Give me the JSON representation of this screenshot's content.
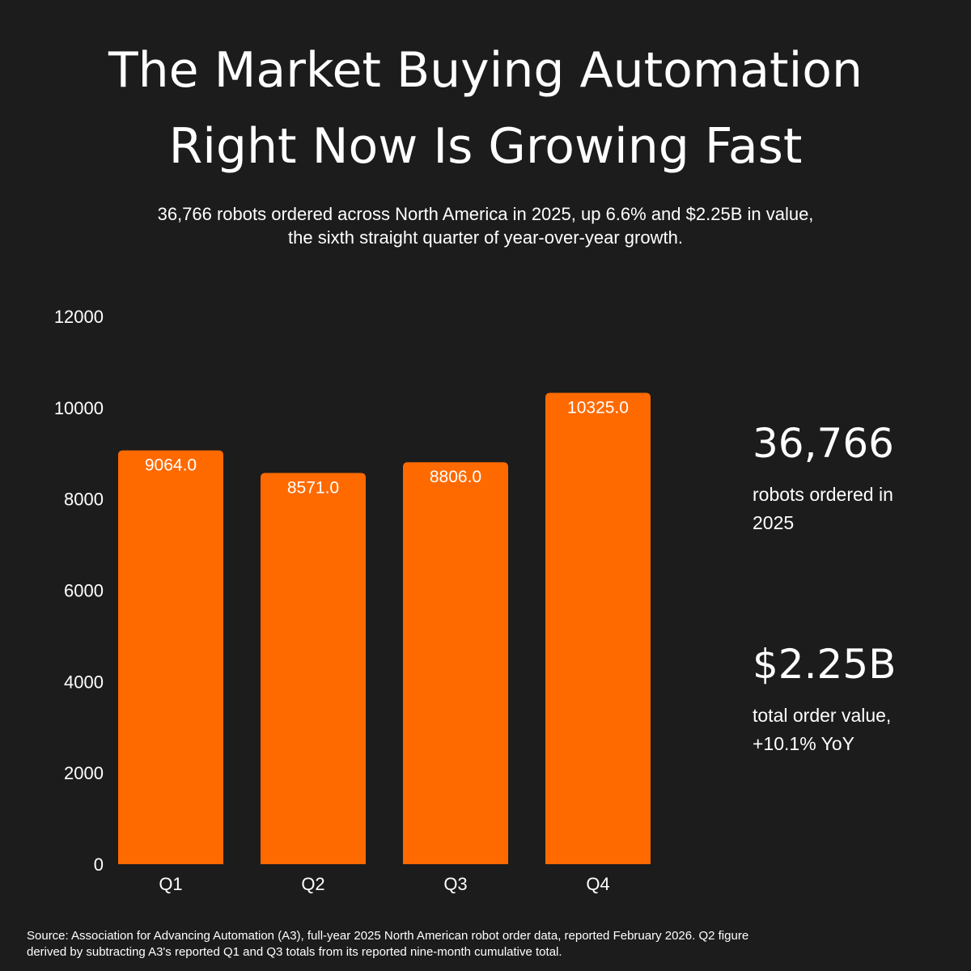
{
  "title": {
    "line1": "The Market Buying Automation",
    "line2": "Right Now Is Growing Fast"
  },
  "subtitle": {
    "line1": "36,766 robots ordered across North America in 2025, up 6.6% and $2.25B in value,",
    "line2": "the sixth straight quarter of year-over-year growth."
  },
  "chart_data": {
    "type": "bar",
    "categories": [
      "Q1",
      "Q2",
      "Q3",
      "Q4"
    ],
    "values": [
      9064.0,
      8571.0,
      8806.0,
      10325.0
    ],
    "value_labels": [
      "9064.0",
      "8571.0",
      "8806.0",
      "10325.0"
    ],
    "yticks": [
      "0",
      "2000",
      "4000",
      "6000",
      "8000",
      "10000",
      "12000"
    ],
    "ylim": [
      0,
      12000
    ],
    "grid": false,
    "legend": false,
    "bar_color": "#ff6a00"
  },
  "stats": [
    {
      "value": "36,766",
      "label_lines": [
        "robots ordered in",
        "2025"
      ]
    },
    {
      "value": "$2.25B",
      "label_lines": [
        "total order value,",
        "+10.1% YoY"
      ]
    }
  ],
  "source": {
    "line1": "Source: Association for Advancing Automation (A3), full-year 2025 North American robot order data, reported February 2026. Q2 figure",
    "line2": "derived by subtracting A3's reported Q1 and Q3 totals from its reported nine-month cumulative total."
  },
  "colors": {
    "background": "#1c1c1c",
    "text": "#ffffff",
    "accent": "#ff6a00"
  }
}
